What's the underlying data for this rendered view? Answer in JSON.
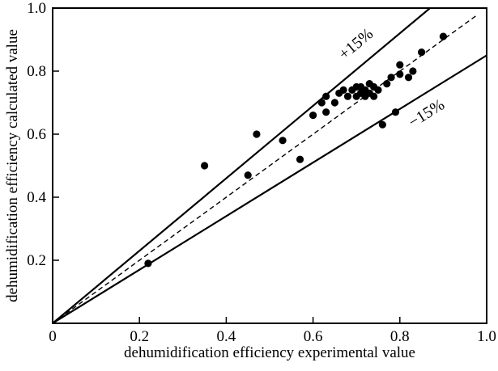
{
  "chart_data": {
    "type": "scatter",
    "title": "",
    "xlabel": "dehumidification efficiency experimental value",
    "ylabel": "dehumidification efficiency calculated value",
    "xlim": [
      0,
      1.0
    ],
    "ylim": [
      0,
      1.0
    ],
    "xticks": [
      0,
      0.2,
      0.4,
      0.6,
      0.8,
      1.0
    ],
    "yticks": [
      0.2,
      0.4,
      0.6,
      0.8,
      1.0
    ],
    "xtick_labels": [
      "0",
      "0.2",
      "0.4",
      "0.6",
      "0.8",
      "1.0"
    ],
    "ytick_labels": [
      "0.2",
      "0.4",
      "0.6",
      "0.8",
      "1.0"
    ],
    "grid": false,
    "legend": false,
    "marker": {
      "shape": "circle",
      "color": "#000000",
      "radius_px": 4.6
    },
    "line_color": "#000000",
    "reference_lines": [
      {
        "name": "plus-15-percent",
        "slope": 1.15,
        "intercept": 0,
        "style": "solid",
        "x_start": 0
      },
      {
        "name": "identity",
        "slope": 1.0,
        "intercept": 0,
        "style": "dashed",
        "x_start": 0,
        "x_end": 0.98
      },
      {
        "name": "minus-15-percent",
        "slope": 0.85,
        "intercept": 0,
        "style": "solid",
        "x_start": 0
      }
    ],
    "annotations": [
      {
        "text": "+15%",
        "x": 0.7,
        "y": 0.885,
        "rotation_deg": -40
      },
      {
        "text": "−15%",
        "x": 0.862,
        "y": 0.664,
        "rotation_deg": -32
      }
    ],
    "points": [
      [
        0.22,
        0.19
      ],
      [
        0.35,
        0.5
      ],
      [
        0.45,
        0.47
      ],
      [
        0.47,
        0.6
      ],
      [
        0.53,
        0.58
      ],
      [
        0.57,
        0.52
      ],
      [
        0.6,
        0.66
      ],
      [
        0.62,
        0.7
      ],
      [
        0.63,
        0.67
      ],
      [
        0.63,
        0.72
      ],
      [
        0.65,
        0.7
      ],
      [
        0.66,
        0.73
      ],
      [
        0.67,
        0.74
      ],
      [
        0.68,
        0.72
      ],
      [
        0.69,
        0.74
      ],
      [
        0.7,
        0.72
      ],
      [
        0.7,
        0.75
      ],
      [
        0.71,
        0.73
      ],
      [
        0.71,
        0.75
      ],
      [
        0.72,
        0.72
      ],
      [
        0.72,
        0.74
      ],
      [
        0.73,
        0.73
      ],
      [
        0.73,
        0.76
      ],
      [
        0.74,
        0.72
      ],
      [
        0.74,
        0.75
      ],
      [
        0.75,
        0.74
      ],
      [
        0.76,
        0.63
      ],
      [
        0.77,
        0.76
      ],
      [
        0.78,
        0.78
      ],
      [
        0.79,
        0.67
      ],
      [
        0.8,
        0.79
      ],
      [
        0.8,
        0.82
      ],
      [
        0.82,
        0.78
      ],
      [
        0.83,
        0.8
      ],
      [
        0.85,
        0.86
      ],
      [
        0.9,
        0.91
      ]
    ]
  }
}
